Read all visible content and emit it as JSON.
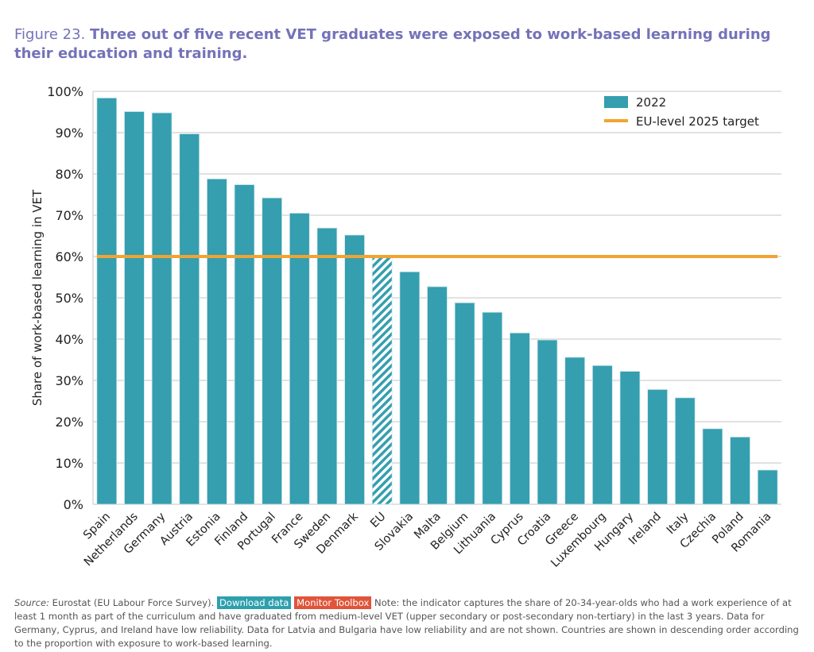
{
  "title": {
    "prefix": "Figure 23.",
    "text": "Three out of five recent VET graduates were exposed to work-based learning during their education and training."
  },
  "chart_data": {
    "type": "bar",
    "ylabel": "Share of work-based learning in VET",
    "ylim": [
      0,
      100
    ],
    "yticks": [
      "0%",
      "10%",
      "20%",
      "30%",
      "40%",
      "50%",
      "60%",
      "70%",
      "80%",
      "90%",
      "100%"
    ],
    "categories": [
      "Spain",
      "Netherlands",
      "Germany",
      "Austria",
      "Estonia",
      "Finland",
      "Portugal",
      "France",
      "Sweden",
      "Denmark",
      "EU",
      "Slovakia",
      "Malta",
      "Belgium",
      "Lithuania",
      "Cyprus",
      "Croatia",
      "Greece",
      "Luxembourg",
      "Hungary",
      "Ireland",
      "Italy",
      "Czechia",
      "Poland",
      "Romania"
    ],
    "series": [
      {
        "name": "2022",
        "values": [
          98.4,
          95.1,
          94.8,
          89.7,
          78.8,
          77.4,
          74.2,
          70.5,
          66.9,
          65.2,
          60.1,
          56.3,
          52.7,
          48.8,
          46.5,
          41.5,
          39.8,
          35.6,
          33.6,
          32.2,
          27.8,
          25.8,
          18.3,
          16.3,
          8.3
        ]
      }
    ],
    "highlight_category": "EU",
    "target": {
      "name": "EU-level 2025 target",
      "value": 60
    },
    "legend_position": "top-right",
    "grid": true,
    "colors": {
      "bar": "#359eaf",
      "target": "#f0a431",
      "grid": "#d9d9d9"
    }
  },
  "footer": {
    "source_label": "Source:",
    "source_text": " Eurostat (EU Labour Force Survey). ",
    "download": "Download data",
    "toolbox": "Monitor Toolbox",
    "note": " Note: the indicator captures the share of 20-34-year-olds who had a work experience of at least 1 month as part of the curriculum and have graduated from medium-level VET (upper secondary or post-secondary non-tertiary) in the last 3 years. Data for Germany, Cyprus, and Ireland have low reliability. Data for Latvia and Bulgaria have low reliability and are not shown. Countries are shown in descending order according to the proportion with exposure to work-based learning."
  }
}
